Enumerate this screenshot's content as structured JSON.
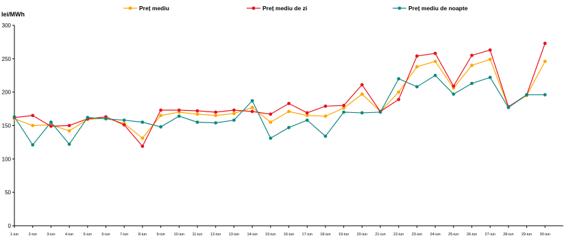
{
  "chart_data": {
    "type": "line",
    "ylabel": "lei/MWh",
    "ylim": [
      0,
      300
    ],
    "yticks": [
      0,
      50,
      100,
      150,
      200,
      250,
      300
    ],
    "grid": false,
    "legend_position": "top",
    "categories": [
      "1-iun",
      "2-iun",
      "3-iun",
      "4-iun",
      "5-iun",
      "6-iun",
      "7-iun",
      "8-iun",
      "9-iun",
      "10-iun",
      "11-iun",
      "12-iun",
      "13-iun",
      "14-iun",
      "15-iun",
      "16-iun",
      "17-iun",
      "18-iun",
      "19-iun",
      "20-iun",
      "21-iun",
      "22-iun",
      "23-iun",
      "24-iun",
      "25-iun",
      "26-iun",
      "27-iun",
      "28-iun",
      "29-iun",
      "30-iun"
    ],
    "series": [
      {
        "name": "Preț mediu",
        "color": "#ffa500",
        "values": [
          160,
          150,
          151,
          142,
          159,
          161,
          153,
          131,
          165,
          170,
          167,
          165,
          168,
          177,
          155,
          171,
          165,
          164,
          176,
          197,
          171,
          200,
          238,
          246,
          206,
          240,
          249,
          178,
          195,
          246
        ]
      },
      {
        "name": "Preț mediu de zi",
        "color": "#e8101b",
        "values": [
          162,
          165,
          149,
          150,
          160,
          163,
          151,
          119,
          173,
          173,
          172,
          170,
          173,
          171,
          167,
          183,
          169,
          179,
          180,
          211,
          171,
          189,
          254,
          258,
          209,
          255,
          263,
          178,
          196,
          273
        ]
      },
      {
        "name": "Preț mediu de noapte",
        "color": "#0e8882",
        "values": [
          163,
          121,
          155,
          122,
          162,
          160,
          158,
          155,
          148,
          164,
          155,
          154,
          158,
          187,
          131,
          147,
          158,
          134,
          170,
          169,
          170,
          220,
          208,
          225,
          197,
          213,
          222,
          177,
          196,
          196
        ]
      }
    ]
  }
}
